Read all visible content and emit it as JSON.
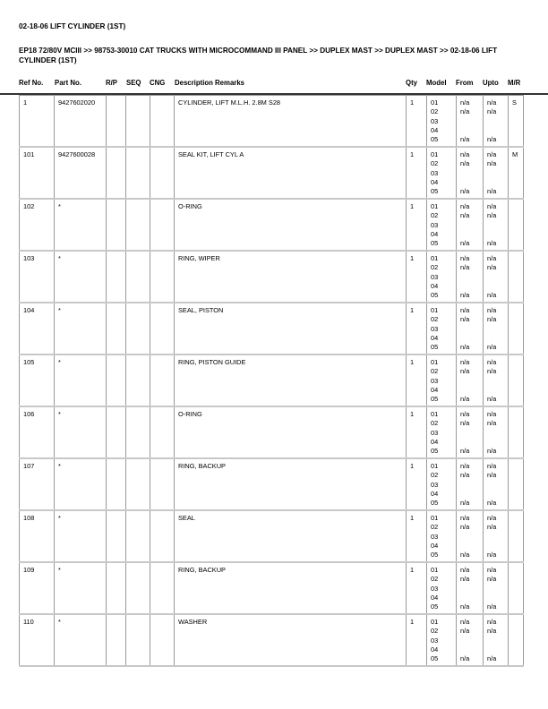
{
  "title": "02-18-06 LIFT CYLINDER (1ST)",
  "breadcrumb": "EP18 72/80V MCIII >> 98753-30010 CAT TRUCKS WITH MICROCOMMAND III PANEL >> DUPLEX MAST >> DUPLEX MAST >> 02-18-06 LIFT CYLINDER (1ST)",
  "headers": {
    "ref": "Ref No.",
    "part": "Part No.",
    "rp": "R/P",
    "seq": "SEQ",
    "cng": "CNG",
    "desc": "Description Remarks",
    "qty": "Qty",
    "model": "Model",
    "from": "From",
    "upto": "Upto",
    "mr": "M/R"
  },
  "rows": [
    {
      "ref": "1",
      "part": "9427602020",
      "desc": "CYLINDER, LIFT M.L.H. 2.8M S28",
      "qty": "1",
      "mr": "S"
    },
    {
      "ref": "101",
      "part": "9427600028",
      "desc": "SEAL KIT, LIFT CYL A",
      "qty": "1",
      "mr": "M"
    },
    {
      "ref": "102",
      "part": "*",
      "desc": "O-RING",
      "qty": "1",
      "mr": ""
    },
    {
      "ref": "103",
      "part": "*",
      "desc": "RING, WIPER",
      "qty": "1",
      "mr": ""
    },
    {
      "ref": "104",
      "part": "*",
      "desc": "SEAL, PISTON",
      "qty": "1",
      "mr": ""
    },
    {
      "ref": "105",
      "part": "*",
      "desc": "RING, PISTON GUIDE",
      "qty": "1",
      "mr": ""
    },
    {
      "ref": "106",
      "part": "*",
      "desc": "O-RING",
      "qty": "1",
      "mr": ""
    },
    {
      "ref": "107",
      "part": "*",
      "desc": "RING, BACKUP",
      "qty": "1",
      "mr": ""
    },
    {
      "ref": "108",
      "part": "*",
      "desc": "SEAL",
      "qty": "1",
      "mr": ""
    },
    {
      "ref": "109",
      "part": "*",
      "desc": "RING, BACKUP",
      "qty": "1",
      "mr": ""
    },
    {
      "ref": "110",
      "part": "*",
      "desc": "WASHER",
      "qty": "1",
      "mr": ""
    }
  ],
  "models": [
    "01",
    "02",
    "03",
    "04",
    "05"
  ],
  "from": [
    "n/a",
    "n/a",
    "",
    "",
    "n/a"
  ],
  "upto": [
    "n/a",
    "n/a",
    "",
    "",
    "n/a"
  ]
}
